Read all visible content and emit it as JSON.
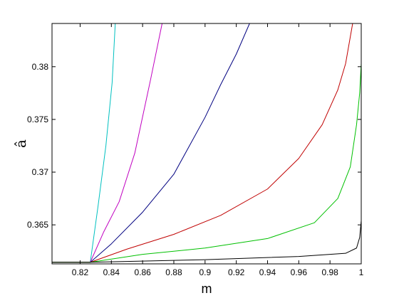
{
  "chart_data": {
    "type": "line",
    "xlabel": "m",
    "ylabel": "â",
    "xlim": [
      0.802,
      1.0
    ],
    "ylim": [
      0.3613,
      0.3841
    ],
    "grid": false,
    "legend": "none",
    "xticks": [
      0.82,
      0.84,
      0.86,
      0.88,
      0.9,
      0.92,
      0.94,
      0.96,
      0.98,
      1
    ],
    "xtick_labels": [
      "0.82",
      "0.84",
      "0.86",
      "0.88",
      "0.9",
      "0.92",
      "0.94",
      "0.96",
      "0.98",
      "1"
    ],
    "yticks": [
      0.365,
      0.37,
      0.375,
      0.38
    ],
    "ytick_labels": [
      "0.365",
      "0.37",
      "0.375",
      "0.38"
    ],
    "series": [
      {
        "color": "#00c0c0",
        "x": [
          0.802,
          0.8265,
          0.8315,
          0.8365,
          0.8405,
          0.8425
        ],
        "y": [
          0.36145,
          0.36145,
          0.3668,
          0.3725,
          0.3785,
          0.3841
        ]
      },
      {
        "color": "#c000c0",
        "x": [
          0.802,
          0.8265,
          0.835,
          0.845,
          0.855,
          0.865,
          0.8725
        ],
        "y": [
          0.36145,
          0.36145,
          0.3643,
          0.3672,
          0.3718,
          0.3787,
          0.3841
        ]
      },
      {
        "color": "#000080",
        "x": [
          0.802,
          0.8265,
          0.84,
          0.86,
          0.88,
          0.9,
          0.91,
          0.92,
          0.9285
        ],
        "y": [
          0.36145,
          0.36145,
          0.3632,
          0.3662,
          0.3698,
          0.3752,
          0.3783,
          0.3812,
          0.3841
        ]
      },
      {
        "color": "#c00000",
        "x": [
          0.802,
          0.8265,
          0.85,
          0.88,
          0.91,
          0.94,
          0.96,
          0.975,
          0.985,
          0.99,
          0.9945
        ],
        "y": [
          0.36145,
          0.36145,
          0.3627,
          0.3641,
          0.3659,
          0.3684,
          0.3713,
          0.3745,
          0.3778,
          0.3803,
          0.3841
        ]
      },
      {
        "color": "#00c000",
        "x": [
          0.802,
          0.8265,
          0.86,
          0.9,
          0.94,
          0.97,
          0.985,
          0.993,
          0.997,
          0.999,
          1.0
        ],
        "y": [
          0.36145,
          0.36145,
          0.3622,
          0.3628,
          0.3637,
          0.3652,
          0.3675,
          0.3705,
          0.3745,
          0.3775,
          0.3803
        ]
      },
      {
        "color": "#000000",
        "x": [
          0.802,
          0.8265,
          0.9,
          0.96,
          0.99,
          0.997,
          0.999,
          1.0
        ],
        "y": [
          0.36145,
          0.36145,
          0.3617,
          0.362,
          0.3623,
          0.3628,
          0.3638,
          0.3654
        ]
      }
    ]
  }
}
